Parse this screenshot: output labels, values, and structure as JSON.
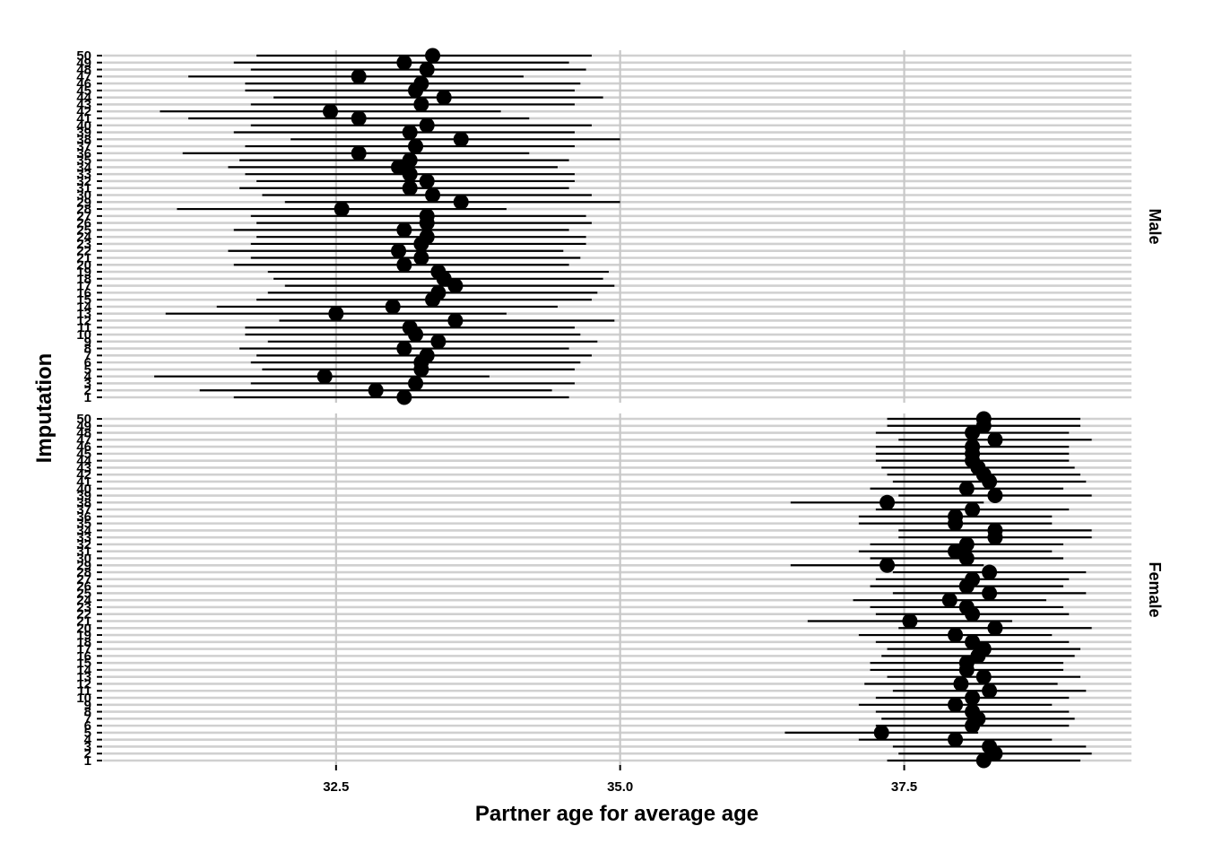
{
  "chart_data": {
    "type": "forest",
    "xlabel": "Partner age for average age",
    "ylabel": "Imputation",
    "x_ticks": [
      32.5,
      35.0,
      37.5
    ],
    "x_tick_labels": [
      "32.5",
      "35.0",
      "37.5"
    ],
    "x_range": [
      30.45,
      39.5
    ],
    "y_range": [
      1,
      50
    ],
    "grid": "vertical major lines + horizontal line per imputation",
    "facets": [
      {
        "label": "Male",
        "points": [
          {
            "imputation": 1,
            "estimate": 33.1,
            "low": 31.6,
            "high": 34.55
          },
          {
            "imputation": 2,
            "estimate": 32.85,
            "low": 31.3,
            "high": 34.4
          },
          {
            "imputation": 3,
            "estimate": 33.2,
            "low": 31.75,
            "high": 34.6
          },
          {
            "imputation": 4,
            "estimate": 32.4,
            "low": 30.9,
            "high": 33.85
          },
          {
            "imputation": 5,
            "estimate": 33.25,
            "low": 31.85,
            "high": 34.6
          },
          {
            "imputation": 6,
            "estimate": 33.25,
            "low": 31.75,
            "high": 34.65
          },
          {
            "imputation": 7,
            "estimate": 33.3,
            "low": 31.8,
            "high": 34.75
          },
          {
            "imputation": 8,
            "estimate": 33.1,
            "low": 31.65,
            "high": 34.55
          },
          {
            "imputation": 9,
            "estimate": 33.4,
            "low": 31.9,
            "high": 34.8
          },
          {
            "imputation": 10,
            "estimate": 33.2,
            "low": 31.7,
            "high": 34.65
          },
          {
            "imputation": 11,
            "estimate": 33.15,
            "low": 31.7,
            "high": 34.6
          },
          {
            "imputation": 12,
            "estimate": 33.55,
            "low": 32.0,
            "high": 34.95
          },
          {
            "imputation": 13,
            "estimate": 32.5,
            "low": 31.0,
            "high": 34.0
          },
          {
            "imputation": 14,
            "estimate": 33.0,
            "low": 31.45,
            "high": 34.45
          },
          {
            "imputation": 15,
            "estimate": 33.35,
            "low": 31.8,
            "high": 34.75
          },
          {
            "imputation": 16,
            "estimate": 33.4,
            "low": 31.9,
            "high": 34.8
          },
          {
            "imputation": 17,
            "estimate": 33.55,
            "low": 32.05,
            "high": 34.95
          },
          {
            "imputation": 18,
            "estimate": 33.45,
            "low": 31.95,
            "high": 34.85
          },
          {
            "imputation": 19,
            "estimate": 33.4,
            "low": 31.9,
            "high": 34.9
          },
          {
            "imputation": 20,
            "estimate": 33.1,
            "low": 31.6,
            "high": 34.55
          },
          {
            "imputation": 21,
            "estimate": 33.25,
            "low": 31.75,
            "high": 34.65
          },
          {
            "imputation": 22,
            "estimate": 33.05,
            "low": 31.55,
            "high": 34.5
          },
          {
            "imputation": 23,
            "estimate": 33.25,
            "low": 31.75,
            "high": 34.7
          },
          {
            "imputation": 24,
            "estimate": 33.3,
            "low": 31.8,
            "high": 34.7
          },
          {
            "imputation": 25,
            "estimate": 33.1,
            "low": 31.6,
            "high": 34.55
          },
          {
            "imputation": 26,
            "estimate": 33.3,
            "low": 31.8,
            "high": 34.75
          },
          {
            "imputation": 27,
            "estimate": 33.3,
            "low": 31.75,
            "high": 34.7
          },
          {
            "imputation": 28,
            "estimate": 32.55,
            "low": 31.1,
            "high": 34.0
          },
          {
            "imputation": 29,
            "estimate": 33.6,
            "low": 32.05,
            "high": 35.0
          },
          {
            "imputation": 30,
            "estimate": 33.35,
            "low": 31.85,
            "high": 34.75
          },
          {
            "imputation": 31,
            "estimate": 33.15,
            "low": 31.65,
            "high": 34.55
          },
          {
            "imputation": 32,
            "estimate": 33.3,
            "low": 31.8,
            "high": 34.6
          },
          {
            "imputation": 33,
            "estimate": 33.15,
            "low": 31.7,
            "high": 34.6
          },
          {
            "imputation": 34,
            "estimate": 33.05,
            "low": 31.55,
            "high": 34.45
          },
          {
            "imputation": 35,
            "estimate": 33.15,
            "low": 31.65,
            "high": 34.55
          },
          {
            "imputation": 36,
            "estimate": 32.7,
            "low": 31.15,
            "high": 34.2
          },
          {
            "imputation": 37,
            "estimate": 33.2,
            "low": 31.7,
            "high": 34.6
          },
          {
            "imputation": 38,
            "estimate": 33.6,
            "low": 32.1,
            "high": 35.0
          },
          {
            "imputation": 39,
            "estimate": 33.15,
            "low": 31.6,
            "high": 34.6
          },
          {
            "imputation": 40,
            "estimate": 33.3,
            "low": 31.75,
            "high": 34.75
          },
          {
            "imputation": 41,
            "estimate": 32.7,
            "low": 31.2,
            "high": 34.2
          },
          {
            "imputation": 42,
            "estimate": 32.45,
            "low": 30.95,
            "high": 33.95
          },
          {
            "imputation": 43,
            "estimate": 33.25,
            "low": 31.75,
            "high": 34.6
          },
          {
            "imputation": 44,
            "estimate": 33.45,
            "low": 31.95,
            "high": 34.85
          },
          {
            "imputation": 45,
            "estimate": 33.2,
            "low": 31.7,
            "high": 34.6
          },
          {
            "imputation": 46,
            "estimate": 33.25,
            "low": 31.7,
            "high": 34.65
          },
          {
            "imputation": 47,
            "estimate": 32.7,
            "low": 31.2,
            "high": 34.15
          },
          {
            "imputation": 48,
            "estimate": 33.3,
            "low": 31.75,
            "high": 34.7
          },
          {
            "imputation": 49,
            "estimate": 33.1,
            "low": 31.6,
            "high": 34.55
          },
          {
            "imputation": 50,
            "estimate": 33.35,
            "low": 31.8,
            "high": 34.75
          }
        ]
      },
      {
        "label": "Female",
        "points": [
          {
            "imputation": 1,
            "estimate": 38.2,
            "low": 37.35,
            "high": 39.05
          },
          {
            "imputation": 2,
            "estimate": 38.3,
            "low": 37.45,
            "high": 39.15
          },
          {
            "imputation": 3,
            "estimate": 38.25,
            "low": 37.4,
            "high": 39.1
          },
          {
            "imputation": 4,
            "estimate": 37.95,
            "low": 37.1,
            "high": 38.8
          },
          {
            "imputation": 5,
            "estimate": 37.3,
            "low": 36.45,
            "high": 38.15
          },
          {
            "imputation": 6,
            "estimate": 38.1,
            "low": 37.25,
            "high": 38.95
          },
          {
            "imputation": 7,
            "estimate": 38.15,
            "low": 37.3,
            "high": 39.0
          },
          {
            "imputation": 8,
            "estimate": 38.1,
            "low": 37.25,
            "high": 38.95
          },
          {
            "imputation": 9,
            "estimate": 37.95,
            "low": 37.1,
            "high": 38.8
          },
          {
            "imputation": 10,
            "estimate": 38.1,
            "low": 37.25,
            "high": 38.95
          },
          {
            "imputation": 11,
            "estimate": 38.25,
            "low": 37.4,
            "high": 39.1
          },
          {
            "imputation": 12,
            "estimate": 38.0,
            "low": 37.15,
            "high": 38.85
          },
          {
            "imputation": 13,
            "estimate": 38.2,
            "low": 37.35,
            "high": 39.05
          },
          {
            "imputation": 14,
            "estimate": 38.05,
            "low": 37.2,
            "high": 38.9
          },
          {
            "imputation": 15,
            "estimate": 38.05,
            "low": 37.2,
            "high": 38.9
          },
          {
            "imputation": 16,
            "estimate": 38.15,
            "low": 37.3,
            "high": 39.0
          },
          {
            "imputation": 17,
            "estimate": 38.2,
            "low": 37.35,
            "high": 39.05
          },
          {
            "imputation": 18,
            "estimate": 38.1,
            "low": 37.25,
            "high": 38.95
          },
          {
            "imputation": 19,
            "estimate": 37.95,
            "low": 37.1,
            "high": 38.8
          },
          {
            "imputation": 20,
            "estimate": 38.3,
            "low": 37.45,
            "high": 39.15
          },
          {
            "imputation": 21,
            "estimate": 37.55,
            "low": 36.65,
            "high": 38.45
          },
          {
            "imputation": 22,
            "estimate": 38.1,
            "low": 37.25,
            "high": 38.95
          },
          {
            "imputation": 23,
            "estimate": 38.05,
            "low": 37.2,
            "high": 38.9
          },
          {
            "imputation": 24,
            "estimate": 37.9,
            "low": 37.05,
            "high": 38.75
          },
          {
            "imputation": 25,
            "estimate": 38.25,
            "low": 37.4,
            "high": 39.1
          },
          {
            "imputation": 26,
            "estimate": 38.05,
            "low": 37.2,
            "high": 38.9
          },
          {
            "imputation": 27,
            "estimate": 38.1,
            "low": 37.25,
            "high": 38.95
          },
          {
            "imputation": 28,
            "estimate": 38.25,
            "low": 37.4,
            "high": 39.1
          },
          {
            "imputation": 29,
            "estimate": 37.35,
            "low": 36.5,
            "high": 38.2
          },
          {
            "imputation": 30,
            "estimate": 38.05,
            "low": 37.2,
            "high": 38.9
          },
          {
            "imputation": 31,
            "estimate": 37.95,
            "low": 37.1,
            "high": 38.8
          },
          {
            "imputation": 32,
            "estimate": 38.05,
            "low": 37.2,
            "high": 38.9
          },
          {
            "imputation": 33,
            "estimate": 38.3,
            "low": 37.45,
            "high": 39.15
          },
          {
            "imputation": 34,
            "estimate": 38.3,
            "low": 37.45,
            "high": 39.15
          },
          {
            "imputation": 35,
            "estimate": 37.95,
            "low": 37.1,
            "high": 38.8
          },
          {
            "imputation": 36,
            "estimate": 37.95,
            "low": 37.1,
            "high": 38.8
          },
          {
            "imputation": 37,
            "estimate": 38.1,
            "low": 37.25,
            "high": 38.95
          },
          {
            "imputation": 38,
            "estimate": 37.35,
            "low": 36.5,
            "high": 38.2
          },
          {
            "imputation": 39,
            "estimate": 38.3,
            "low": 37.45,
            "high": 39.15
          },
          {
            "imputation": 40,
            "estimate": 38.05,
            "low": 37.2,
            "high": 38.9
          },
          {
            "imputation": 41,
            "estimate": 38.25,
            "low": 37.4,
            "high": 39.1
          },
          {
            "imputation": 42,
            "estimate": 38.2,
            "low": 37.35,
            "high": 39.05
          },
          {
            "imputation": 43,
            "estimate": 38.15,
            "low": 37.3,
            "high": 39.0
          },
          {
            "imputation": 44,
            "estimate": 38.1,
            "low": 37.25,
            "high": 38.95
          },
          {
            "imputation": 45,
            "estimate": 38.1,
            "low": 37.25,
            "high": 38.95
          },
          {
            "imputation": 46,
            "estimate": 38.1,
            "low": 37.25,
            "high": 38.95
          },
          {
            "imputation": 47,
            "estimate": 38.3,
            "low": 37.45,
            "high": 39.15
          },
          {
            "imputation": 48,
            "estimate": 38.1,
            "low": 37.25,
            "high": 38.95
          },
          {
            "imputation": 49,
            "estimate": 38.2,
            "low": 37.35,
            "high": 39.05
          },
          {
            "imputation": 50,
            "estimate": 38.2,
            "low": 37.35,
            "high": 39.05
          }
        ]
      }
    ]
  }
}
